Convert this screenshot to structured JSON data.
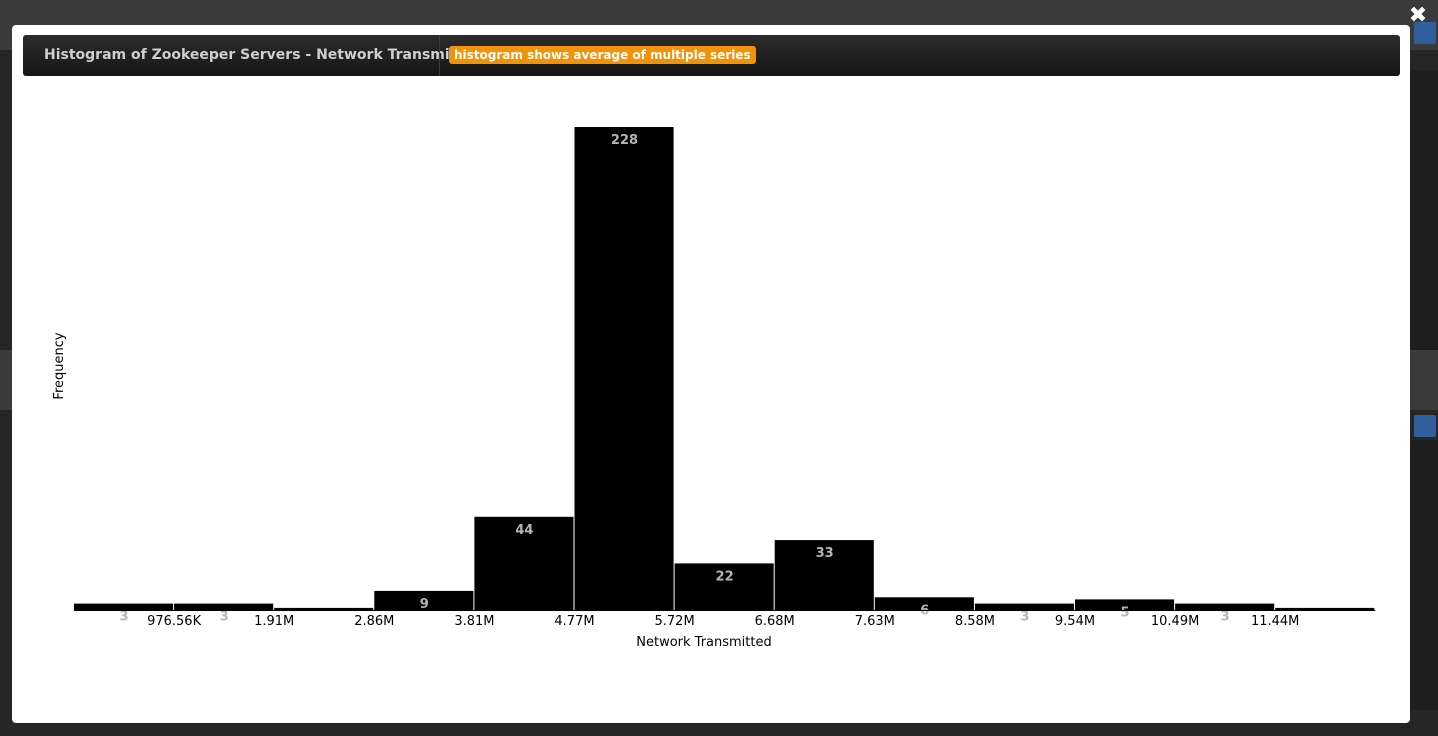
{
  "modal": {
    "title": "Histogram of Zookeeper Servers - Network Transmitted",
    "note": "histogram shows average of multiple series"
  },
  "colors": {
    "bar": "#000000",
    "bar_label": "#b5b5b5",
    "badge": "#f0920a",
    "header": "#1f1f1f"
  },
  "chart_data": {
    "type": "bar",
    "title": "",
    "xlabel": "Network Transmitted",
    "ylabel": "Frequency",
    "categories": [
      "0-976.56K",
      "976.56K-1.91M",
      "1.91M-2.86M",
      "2.86M-3.81M",
      "3.81M-4.77M",
      "4.77M-5.72M",
      "5.72M-6.68M",
      "6.68M-7.63M",
      "7.63M-8.58M",
      "8.58M-9.54M",
      "9.54M-10.49M",
      "10.49M-11.44M",
      "11.44M-12.4M"
    ],
    "values": [
      3,
      3,
      1,
      9,
      44,
      228,
      22,
      33,
      6,
      3,
      5,
      3,
      1
    ],
    "value_labels": [
      "3",
      "3",
      "",
      "9",
      "44",
      "228",
      "22",
      "33",
      "6",
      "3",
      "5",
      "3",
      ""
    ],
    "x_tick_labels": [
      "976.56K",
      "1.91M",
      "2.86M",
      "3.81M",
      "4.77M",
      "5.72M",
      "6.68M",
      "7.63M",
      "8.58M",
      "9.54M",
      "10.49M",
      "11.44M"
    ],
    "ylim": [
      0,
      228
    ],
    "grid": false,
    "legend": "none"
  }
}
